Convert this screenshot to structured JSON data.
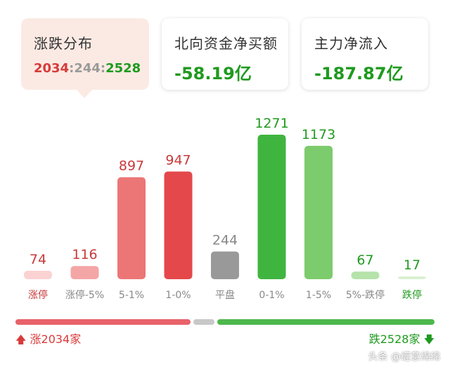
{
  "cards": {
    "distribution": {
      "title": "涨跌分布",
      "up": "2034",
      "sep1": ":",
      "flat": "244",
      "sep2": ":",
      "down": "2528"
    },
    "northbound": {
      "title": "北向资金净买额",
      "value": "-58.19亿"
    },
    "main_force": {
      "title": "主力净流入",
      "value": "-187.87亿"
    }
  },
  "chart_data": {
    "type": "bar",
    "categories": [
      "涨停",
      "涨停-5%",
      "5-1%",
      "1-0%",
      "平盘",
      "0-1%",
      "1-5%",
      "5%-跌停",
      "跌停"
    ],
    "values": [
      74,
      116,
      897,
      947,
      244,
      1271,
      1173,
      67,
      17
    ],
    "value_labels": [
      "74",
      "116",
      "897",
      "947",
      "244",
      "1271",
      "1173",
      "67",
      "17"
    ],
    "bar_colors": [
      "#fbd2d2",
      "#f4a6a6",
      "#ec7676",
      "#e4484a",
      "#999999",
      "#3fb53f",
      "#7ccb6c",
      "#b5e3aa",
      "#d9f0d2"
    ],
    "label_colors": [
      "#c83a3a",
      "#c83a3a",
      "#c83a3a",
      "#c83a3a",
      "#888888",
      "#1f9a1f",
      "#1f9a1f",
      "#1f9a1f",
      "#1f9a1f"
    ],
    "category_colors": [
      "#c83a3a",
      "#888888",
      "#888888",
      "#888888",
      "#888888",
      "#888888",
      "#888888",
      "#888888",
      "#1f9a1f"
    ],
    "ylim": [
      0,
      1271
    ]
  },
  "summary": {
    "up_count": 2034,
    "flat_count": 244,
    "down_count": 2528,
    "up_label": "涨2034家",
    "down_label": "跌2528家",
    "up_color": "#e8626a",
    "flat_color": "#c8c8c8",
    "down_color": "#4cb84c",
    "up_icon": "arrow-up-icon",
    "down_icon": "arrow-down-icon"
  },
  "watermark": "头条 @缠意绵绵"
}
